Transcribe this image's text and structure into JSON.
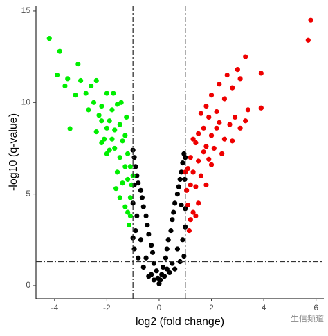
{
  "chart_data": {
    "type": "scatter",
    "xlabel": "log2 (fold change)",
    "ylabel": "-log10 (q-value)",
    "xlim": [
      -4.71,
      6.3
    ],
    "ylim": [
      -0.72,
      15.3
    ],
    "xticks": [
      -4,
      -2,
      0,
      2,
      4,
      6
    ],
    "yticks": [
      0,
      5,
      10,
      15
    ],
    "vlines": [
      -1,
      1
    ],
    "hline": 1.3,
    "annotation": "生信频道",
    "series": [
      {
        "color": "#000000",
        "x": [
          0,
          0.05,
          -0.05,
          0.1,
          -0.1,
          0.15,
          -0.2,
          0.25,
          -0.25,
          0.3,
          -0.3,
          0.35,
          -0.4,
          0.45,
          -0.45,
          0.5,
          -0.5,
          0.55,
          -0.6,
          0.6,
          -0.65,
          0.7,
          -0.7,
          0.75,
          -0.8,
          0.8,
          -0.85,
          0.85,
          -0.9,
          0.9,
          -0.95,
          0.95,
          -1.0,
          1.0,
          -0.9,
          0.9,
          -0.95,
          0.95,
          -0.8,
          0.8,
          -0.6,
          0.6,
          -0.4,
          0.4,
          -1.0,
          1.0,
          -0.95,
          0.98,
          -0.7,
          0.7,
          -0.5,
          0.5,
          -0.3,
          0.3,
          -0.2,
          0.2,
          -1,
          1,
          -0.85,
          0.85
        ],
        "values": [
          0.1,
          0.3,
          0.4,
          0.6,
          0.8,
          1.0,
          1.2,
          1.5,
          1.8,
          2.0,
          2.2,
          2.5,
          2.8,
          3.0,
          3.3,
          3.6,
          3.8,
          4.0,
          4.3,
          4.5,
          4.8,
          5.0,
          5.2,
          5.4,
          5.6,
          5.8,
          6.0,
          6.2,
          6.5,
          6.7,
          7.0,
          7.2,
          7.4,
          7.0,
          3.0,
          2.5,
          2.0,
          1.6,
          1.5,
          1.3,
          1.0,
          0.9,
          0.5,
          0.7,
          4.5,
          4.2,
          5.5,
          5.8,
          2.5,
          2.0,
          1.5,
          1.2,
          0.6,
          0.9,
          0.3,
          0.5,
          2.6,
          3.2,
          3.8,
          4.4
        ]
      },
      {
        "color": "#00ee00",
        "x": [
          -4.2,
          -3.8,
          -3.9,
          -3.5,
          -3.41,
          -3.1,
          -3.0,
          -2.8,
          -2.6,
          -2.4,
          -2.5,
          -2.2,
          -2.0,
          -1.9,
          -1.8,
          -1.7,
          -1.6,
          -1.5,
          -1.4,
          -1.3,
          -1.2,
          -1.1,
          -1.05,
          -1.1,
          -1.2,
          -1.3,
          -1.4,
          -1.5,
          -1.6,
          -1.7,
          -1.8,
          -1.9,
          -2.0,
          -2.1,
          -2.2,
          -2.3,
          -2.0,
          -1.5,
          -1.3,
          -1.2,
          -1.1,
          -1.65,
          -2.4,
          -2.7,
          -3.2,
          -3.6,
          -1.75,
          -1.45,
          -1.25,
          -2.2,
          -1.0,
          -1.15
        ],
        "values": [
          13.5,
          12.8,
          11.5,
          11.3,
          8.57,
          12.1,
          11.2,
          10.5,
          10.9,
          11.2,
          10.0,
          9.8,
          10.5,
          9.0,
          9.6,
          8.5,
          9.9,
          8.8,
          7.9,
          8.2,
          7.2,
          6.5,
          5.5,
          4.8,
          5.8,
          6.5,
          5.6,
          7.0,
          6.2,
          7.5,
          8.0,
          7.4,
          8.6,
          8.0,
          9.0,
          9.3,
          7.2,
          4.8,
          4.3,
          4.0,
          3.8,
          5.3,
          8.4,
          9.6,
          10.4,
          10.9,
          10.5,
          10.0,
          9.2,
          7.8,
          6.0,
          3.3
        ]
      },
      {
        "color": "#ee0000",
        "x": [
          5.8,
          5.7,
          3.9,
          3.9,
          3.3,
          3.0,
          3.1,
          2.8,
          2.6,
          2.5,
          2.3,
          2.2,
          2.0,
          1.9,
          1.8,
          1.7,
          1.6,
          1.5,
          1.4,
          1.3,
          1.2,
          1.1,
          1.05,
          1.1,
          1.2,
          1.3,
          1.4,
          1.5,
          1.6,
          1.7,
          1.8,
          1.9,
          2.0,
          2.1,
          2.2,
          2.3,
          2.5,
          2.7,
          2.9,
          3.1,
          3.3,
          1.3,
          1.4,
          1.2,
          1.5,
          1.15,
          2.4,
          2.0,
          1.8,
          1.0,
          3.4,
          2.8
        ],
        "values": [
          14.5,
          13.4,
          11.6,
          9.7,
          12.5,
          11.8,
          11.3,
          10.8,
          11.5,
          10.2,
          11.0,
          9.5,
          10.4,
          9.2,
          9.8,
          8.6,
          9.4,
          8.3,
          7.8,
          8.0,
          7.0,
          6.4,
          5.2,
          4.4,
          5.5,
          6.2,
          5.4,
          6.8,
          6.0,
          7.3,
          7.6,
          6.9,
          8.2,
          7.5,
          8.6,
          8.9,
          8.0,
          8.8,
          9.2,
          8.6,
          9.0,
          4.0,
          3.8,
          3.6,
          4.5,
          3.0,
          7.2,
          6.6,
          5.5,
          6.2,
          9.6,
          7.9
        ]
      }
    ]
  }
}
